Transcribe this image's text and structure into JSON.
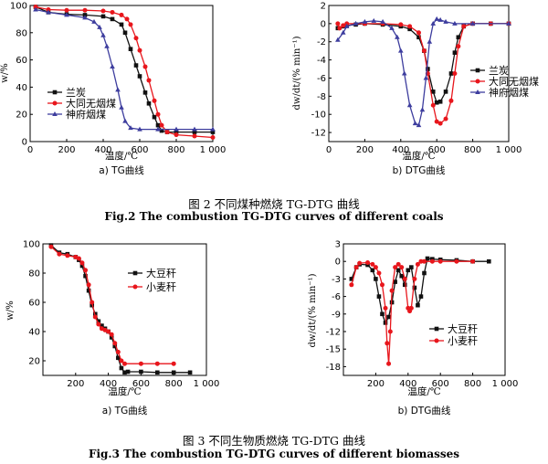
{
  "figures": [
    {
      "caption_zh": "图 2 不同煤种燃烧 TG-DTG 曲线",
      "caption_en": "Fig.2 The combustion TG-DTG curves of different coals",
      "panels": [
        {
          "sub_caption": "a) TG曲线",
          "xlabel": "温度/℃",
          "ylabel": "w/%",
          "xticks": [
            "0",
            "200",
            "400",
            "600",
            "800",
            "1 000"
          ],
          "yticks": [
            "0",
            "20",
            "40",
            "60",
            "80",
            "100"
          ],
          "legend": [
            "兰炭",
            "大同无烟煤",
            "神府烟煤"
          ]
        },
        {
          "sub_caption": "b) DTG曲线",
          "xlabel": "温度/℃",
          "ylabel": "dw/dt/(% min⁻¹)",
          "xticks": [
            "0",
            "200",
            "400",
            "600",
            "800",
            "1 000"
          ],
          "yticks": [
            "2",
            "0",
            "-2",
            "-4",
            "-6",
            "-8",
            "-10",
            "-12"
          ],
          "legend": [
            "兰炭",
            "大同无烟煤",
            "神府烟煤"
          ]
        }
      ]
    },
    {
      "caption_zh": "图 3 不同生物质燃烧 TG-DTG 曲线",
      "caption_en": "Fig.3 The combustion TG-DTG curves of different biomasses",
      "panels": [
        {
          "sub_caption": "a) TG曲线",
          "xlabel": "温度/℃",
          "ylabel": "w/%",
          "xticks": [
            "200",
            "400",
            "600",
            "800",
            "1 000"
          ],
          "yticks": [
            "20",
            "40",
            "60",
            "80",
            "100"
          ],
          "legend": [
            "大豆秆",
            "小麦秆"
          ]
        },
        {
          "sub_caption": "b) DTG曲线",
          "xlabel": "温度/℃",
          "ylabel": "dw/dt/(% min⁻¹)",
          "xticks": [
            "200",
            "400",
            "600",
            "800",
            "1 000"
          ],
          "yticks": [
            "3",
            "0",
            "-3",
            "-6",
            "-9",
            "-12",
            "-15",
            "-18"
          ],
          "legend": [
            "大豆秆",
            "小麦秆"
          ]
        }
      ]
    }
  ],
  "colors": {
    "black": "#111111",
    "red": "#e8161c",
    "blue": "#3d3d9e"
  },
  "chart_data": [
    {
      "type": "line",
      "xlim": [
        0,
        1000
      ],
      "ylim": [
        0,
        100
      ],
      "grid": false,
      "legend_position": "center-left",
      "series": [
        {
          "name": "兰炭",
          "color": "black",
          "marker": "square",
          "x": [
            30,
            100,
            200,
            300,
            400,
            450,
            500,
            520,
            550,
            580,
            600,
            630,
            650,
            680,
            700,
            720,
            750,
            800,
            900,
            1000
          ],
          "y": [
            99,
            95,
            93.5,
            93,
            92,
            90,
            86,
            80,
            68,
            56,
            48,
            36,
            28,
            18,
            12,
            8,
            7,
            7,
            7,
            7
          ]
        },
        {
          "name": "大同无烟煤",
          "color": "red",
          "marker": "circle",
          "x": [
            30,
            100,
            200,
            300,
            400,
            450,
            500,
            530,
            550,
            580,
            600,
            630,
            650,
            680,
            700,
            720,
            750,
            800,
            900,
            1000
          ],
          "y": [
            99,
            97,
            96.5,
            96.5,
            96,
            95,
            93,
            90,
            86,
            76,
            67,
            55,
            45,
            30,
            20,
            12,
            7,
            5,
            4,
            3
          ]
        },
        {
          "name": "神府烟煤",
          "color": "blue",
          "marker": "triangle",
          "x": [
            30,
            100,
            200,
            300,
            350,
            380,
            400,
            420,
            450,
            480,
            500,
            520,
            550,
            600,
            700,
            800,
            900,
            1000
          ],
          "y": [
            97,
            95,
            93,
            91,
            88,
            84,
            78,
            70,
            55,
            38,
            25,
            15,
            10,
            9,
            9,
            9,
            9,
            9
          ]
        }
      ]
    },
    {
      "type": "line",
      "xlim": [
        0,
        1000
      ],
      "ylim": [
        -13,
        2
      ],
      "grid": false,
      "legend_position": "right",
      "series": [
        {
          "name": "兰炭",
          "color": "black",
          "marker": "square",
          "x": [
            50,
            80,
            100,
            150,
            200,
            300,
            400,
            450,
            500,
            530,
            550,
            580,
            600,
            620,
            650,
            680,
            700,
            720,
            750,
            800,
            900,
            1000
          ],
          "y": [
            -0.5,
            -0.3,
            -0.2,
            -0.1,
            0,
            -0.1,
            -0.3,
            -0.6,
            -1.5,
            -3,
            -5,
            -7.5,
            -8.7,
            -8.6,
            -7.5,
            -5.5,
            -3.2,
            -1.5,
            -0.3,
            0,
            0,
            0
          ]
        },
        {
          "name": "大同无烟煤",
          "color": "red",
          "marker": "circle",
          "x": [
            50,
            60,
            80,
            100,
            200,
            300,
            400,
            450,
            500,
            530,
            550,
            580,
            600,
            620,
            650,
            680,
            700,
            720,
            750,
            800,
            900,
            1000
          ],
          "y": [
            0,
            -0.5,
            -0.2,
            0,
            0,
            0,
            -0.1,
            -0.3,
            -1,
            -3,
            -5.5,
            -9,
            -10.8,
            -11,
            -10.5,
            -8.5,
            -5.5,
            -2.5,
            -0.3,
            0,
            0,
            0
          ]
        },
        {
          "name": "神府烟煤",
          "color": "blue",
          "marker": "triangle",
          "x": [
            50,
            80,
            100,
            150,
            200,
            250,
            300,
            350,
            380,
            400,
            420,
            450,
            480,
            500,
            520,
            540,
            560,
            580,
            600,
            620,
            650,
            700,
            800,
            1000
          ],
          "y": [
            -1.8,
            -1,
            -0.3,
            0,
            0.2,
            0.3,
            0.2,
            -0.5,
            -1.5,
            -3,
            -5.5,
            -9,
            -11,
            -11.2,
            -9.5,
            -6,
            -2,
            0,
            0.5,
            0.4,
            0.2,
            0,
            0,
            0
          ]
        }
      ]
    },
    {
      "type": "line",
      "xlim": [
        0,
        1000
      ],
      "ylim": [
        10,
        100
      ],
      "grid": false,
      "legend_position": "top-center",
      "series": [
        {
          "name": "大豆秆",
          "color": "black",
          "marker": "square",
          "x": [
            50,
            100,
            150,
            200,
            220,
            240,
            260,
            280,
            300,
            320,
            340,
            360,
            380,
            400,
            420,
            440,
            460,
            480,
            500,
            520,
            600,
            700,
            800,
            900
          ],
          "y": [
            99,
            94,
            93,
            91,
            89,
            85,
            78,
            68,
            58,
            52,
            47,
            44,
            42,
            40,
            36,
            30,
            22,
            15,
            12,
            12.5,
            12.5,
            12,
            12,
            12
          ]
        },
        {
          "name": "小麦秆",
          "color": "red",
          "marker": "circle",
          "x": [
            50,
            100,
            150,
            200,
            220,
            240,
            260,
            280,
            300,
            320,
            340,
            360,
            380,
            400,
            420,
            440,
            460,
            480,
            500,
            600,
            700,
            800
          ],
          "y": [
            98,
            93,
            92,
            91,
            90,
            87,
            82,
            72,
            60,
            50,
            45,
            42,
            41,
            40,
            38,
            32,
            26,
            20,
            18,
            18,
            18,
            18
          ]
        }
      ]
    },
    {
      "type": "line",
      "xlim": [
        0,
        1000
      ],
      "ylim": [
        -19.5,
        3
      ],
      "grid": false,
      "legend_position": "center-right",
      "series": [
        {
          "name": "大豆秆",
          "color": "black",
          "marker": "square",
          "x": [
            50,
            80,
            100,
            150,
            180,
            200,
            220,
            240,
            260,
            280,
            300,
            320,
            340,
            360,
            380,
            400,
            420,
            440,
            460,
            480,
            500,
            520,
            550,
            600,
            700,
            800,
            900
          ],
          "y": [
            -3,
            -1,
            -0.5,
            -0.6,
            -1.5,
            -3,
            -6,
            -9,
            -10.5,
            -9.5,
            -7,
            -3.5,
            -1.5,
            -2.5,
            -4,
            -1.5,
            -1,
            -4.5,
            -7.5,
            -6,
            -2,
            0.5,
            0.4,
            0.3,
            0.2,
            0,
            0
          ]
        },
        {
          "name": "小麦秆",
          "color": "red",
          "marker": "circle",
          "x": [
            50,
            80,
            100,
            150,
            180,
            200,
            220,
            240,
            260,
            270,
            280,
            290,
            300,
            320,
            340,
            360,
            380,
            400,
            410,
            420,
            440,
            460,
            480,
            500,
            550,
            600,
            700,
            800
          ],
          "y": [
            -4,
            -1,
            -0.3,
            -0.2,
            -0.5,
            -1,
            -2,
            -4,
            -8,
            -14,
            -17.5,
            -12,
            -5,
            -1,
            -0.5,
            -1,
            -3,
            -8,
            -8.5,
            -8,
            -3,
            -0.5,
            0,
            0,
            0,
            0,
            0,
            0
          ]
        }
      ]
    }
  ]
}
